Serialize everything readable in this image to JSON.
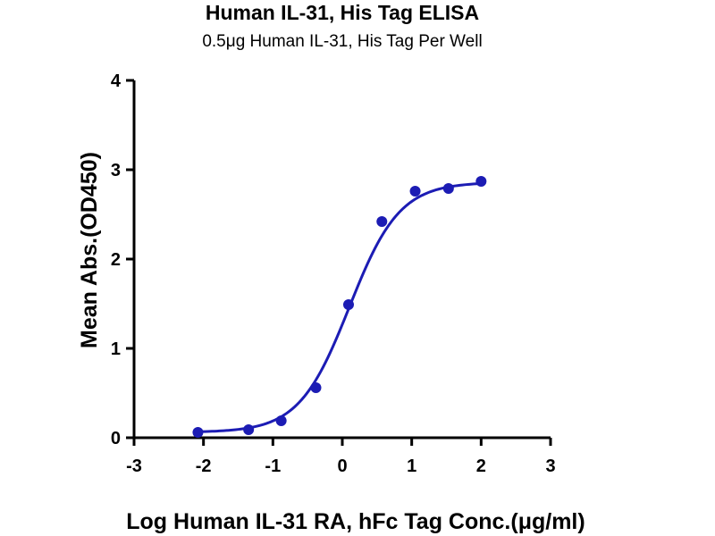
{
  "chart_data": {
    "type": "scatter",
    "title": "Human IL-31, His Tag ELISA",
    "subtitle": "0.5μg Human IL-31, His Tag Per Well",
    "xlabel": "Log Human IL-31 RA, hFc Tag Conc.(μg/ml)",
    "ylabel": "Mean Abs.(OD450)",
    "xlim": [
      -3,
      3
    ],
    "ylim": [
      0,
      4
    ],
    "x_ticks": [
      "-3",
      "-2",
      "-1",
      "0",
      "1",
      "2",
      "3"
    ],
    "y_ticks": [
      "0",
      "1",
      "2",
      "3",
      "4"
    ],
    "grid": false,
    "color": "#1c1cb4",
    "series": [
      {
        "x": [
          -2.08,
          -1.35,
          -0.88,
          -0.38,
          0.09,
          0.57,
          1.05,
          1.53,
          2.0
        ],
        "y": [
          0.06,
          0.09,
          0.19,
          0.56,
          1.49,
          2.42,
          2.76,
          2.79,
          2.87
        ]
      }
    ],
    "fit": {
      "type": "4PL",
      "bottom": 0.06,
      "top": 2.86,
      "logEC50": 0.1,
      "hill": 1.2
    }
  }
}
